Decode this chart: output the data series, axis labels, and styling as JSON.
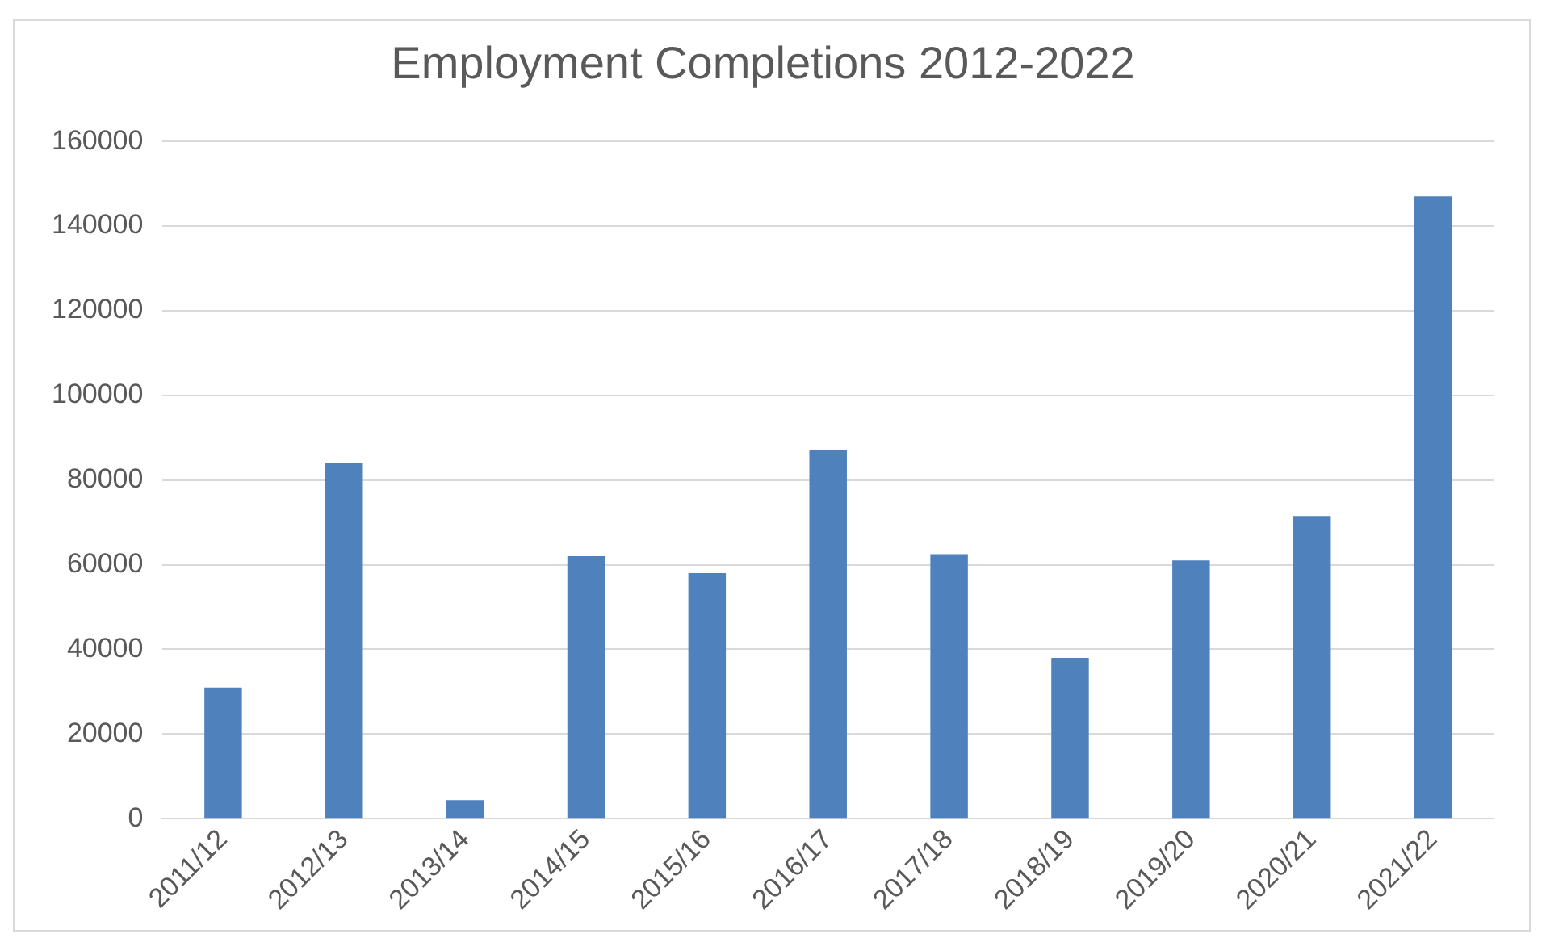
{
  "chart_data": {
    "type": "bar",
    "title": "Employment Completions 2012-2022",
    "categories": [
      "2011/12",
      "2012/13",
      "2013/14",
      "2014/15",
      "2015/16",
      "2016/17",
      "2017/18",
      "2018/19",
      "2019/20",
      "2020/21",
      "2021/22"
    ],
    "values": [
      31000,
      84000,
      4400,
      62000,
      58000,
      87000,
      62500,
      38000,
      61000,
      71500,
      147000
    ],
    "color": "#4f81bd",
    "ylim": [
      0,
      160000
    ],
    "yticks": [
      0,
      20000,
      40000,
      60000,
      80000,
      100000,
      120000,
      140000,
      160000
    ],
    "grid": "y",
    "legend": false
  }
}
